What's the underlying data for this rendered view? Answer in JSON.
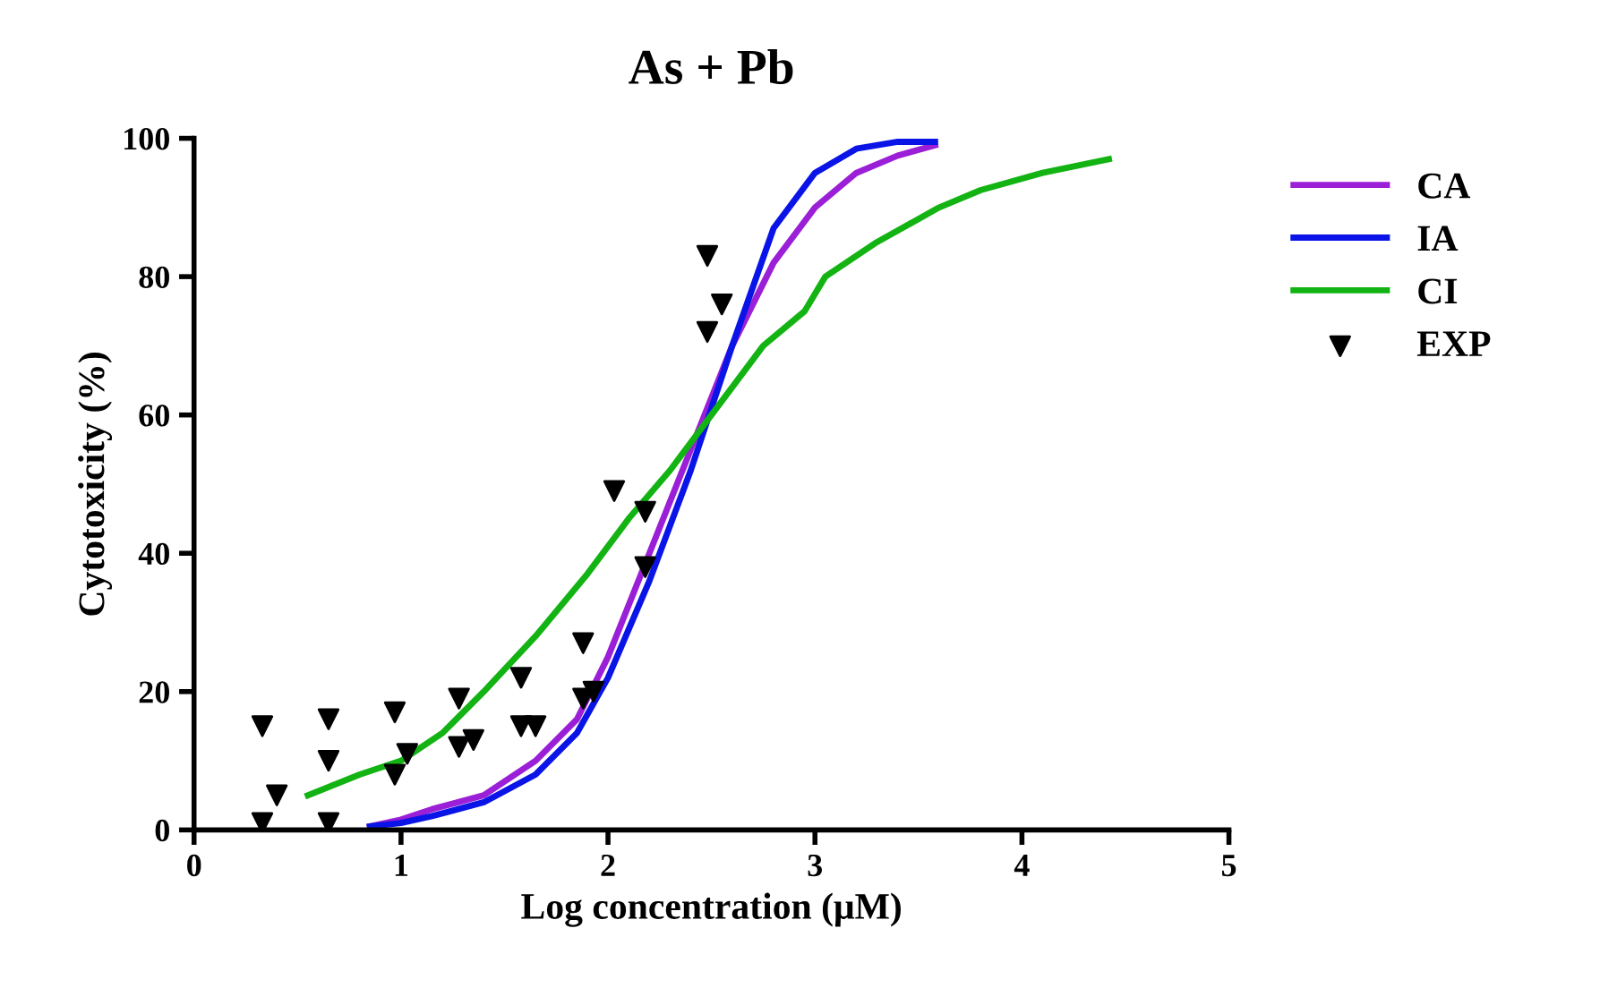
{
  "chart_data": {
    "type": "line",
    "title": "As + Pb",
    "xlabel": "Log concentration (μM)",
    "ylabel": "Cytotoxicity (%)",
    "xlim": [
      0,
      5
    ],
    "xticks": [
      0,
      1,
      2,
      3,
      4,
      5
    ],
    "ylim": [
      0,
      100
    ],
    "yticks": [
      0,
      20,
      40,
      60,
      80,
      100
    ],
    "grid": false,
    "legend": "right",
    "line_style": "solid",
    "series": [
      {
        "name": "CA",
        "color": "#9b1fd6",
        "x": [
          0.85,
          1.0,
          1.15,
          1.4,
          1.65,
          1.85,
          2.0,
          2.2,
          2.4,
          2.6,
          2.8,
          3.0,
          3.2,
          3.4,
          3.58
        ],
        "values": [
          0.5,
          1.5,
          3,
          5,
          10,
          16,
          25,
          40,
          55,
          70,
          82,
          90,
          95,
          97.5,
          99
        ]
      },
      {
        "name": "IA",
        "color": "#0a14e6",
        "x": [
          0.85,
          1.0,
          1.15,
          1.4,
          1.65,
          1.85,
          2.0,
          2.2,
          2.4,
          2.6,
          2.8,
          3.0,
          3.2,
          3.4,
          3.58
        ],
        "values": [
          0.5,
          1,
          2,
          4,
          8,
          14,
          22,
          36,
          52,
          70,
          87,
          95,
          98.5,
          99.5,
          99.5
        ]
      },
      {
        "name": "CI",
        "color": "#12b312",
        "x": [
          0.55,
          0.8,
          1.0,
          1.2,
          1.4,
          1.65,
          1.9,
          2.1,
          2.3,
          2.5,
          2.75,
          2.95,
          3.05,
          3.3,
          3.6,
          3.8,
          4.1,
          4.42
        ],
        "values": [
          5,
          8,
          10,
          14,
          20,
          28,
          37,
          45,
          52,
          60,
          70,
          75,
          80,
          85,
          90,
          92.5,
          95,
          97
        ]
      },
      {
        "name": "EXP",
        "color": "#000000",
        "type": "scatter",
        "marker": "triangle",
        "x": [
          0.33,
          0.33,
          0.4,
          0.65,
          0.65,
          0.65,
          0.97,
          0.97,
          1.03,
          1.28,
          1.28,
          1.35,
          1.58,
          1.58,
          1.65,
          1.88,
          1.88,
          1.93,
          2.03,
          2.18,
          2.18,
          2.48,
          2.48,
          2.55
        ],
        "values": [
          15,
          1,
          5,
          16,
          10,
          1,
          17,
          8,
          11,
          19,
          12,
          13,
          22,
          15,
          15,
          27,
          19,
          20,
          49,
          46,
          38,
          83,
          72,
          76
        ]
      }
    ]
  }
}
